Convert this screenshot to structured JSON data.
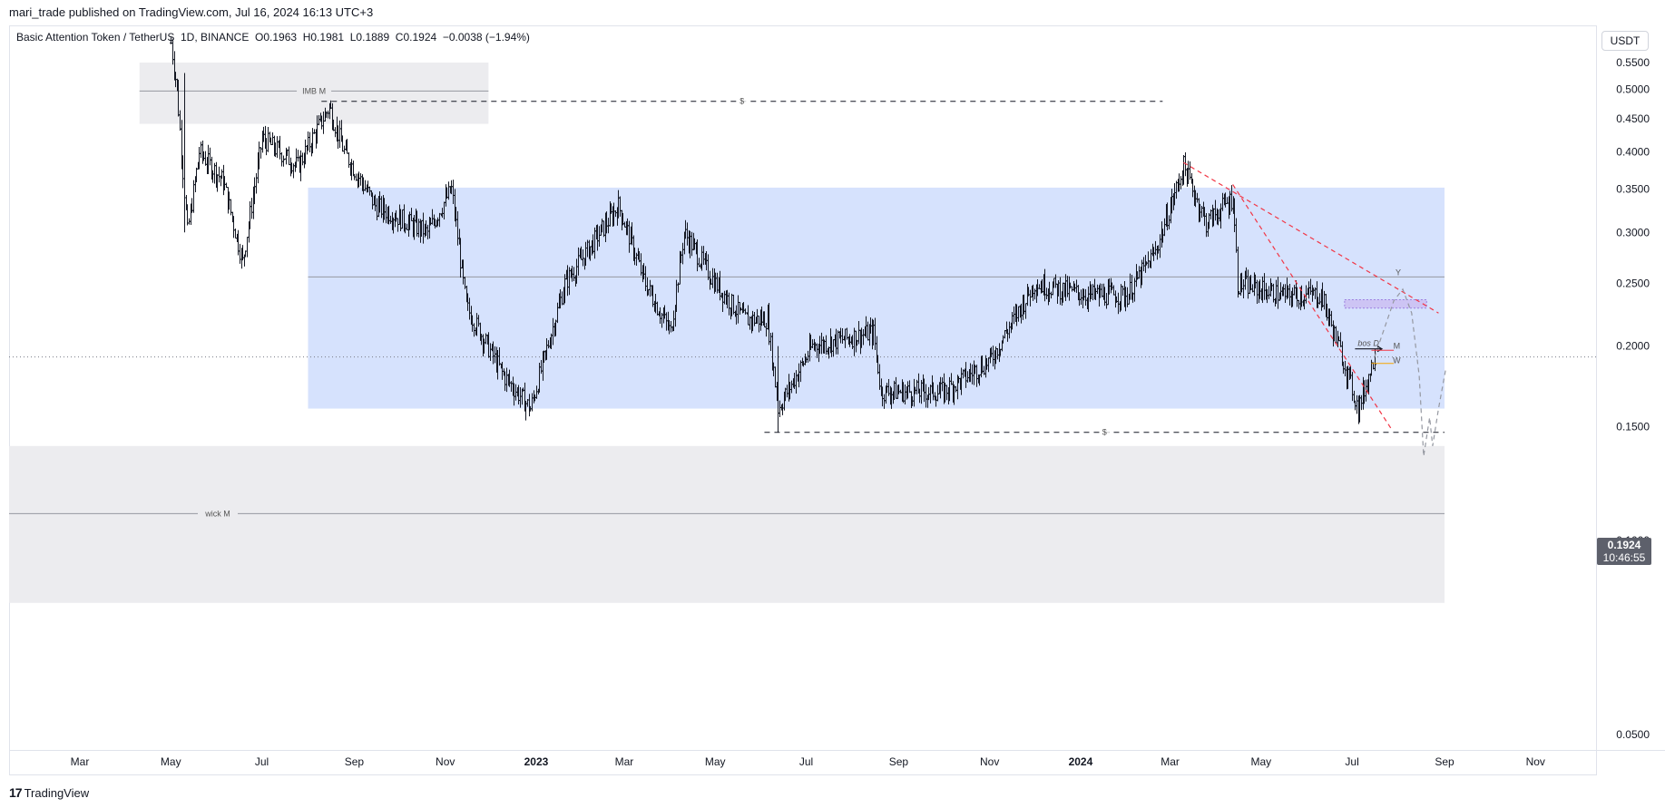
{
  "publish_line": "mari_trade published on TradingView.com, Jul 16, 2024 16:13 UTC+3",
  "legend": "Basic Attention Token / TetherUS  1D, BINANCE  O0.1963  H0.1981  L0.1889  C0.1924  −0.0038 (−1.94%)",
  "currency": "USDT",
  "last_price": "0.1924",
  "countdown": "10:46:55",
  "brand": "TradingView",
  "colors": {
    "candle": "#131722",
    "zone_gray": "#ececef",
    "zone_blue": "#d6e2fd",
    "trendline": "#f23645",
    "purple_zone": "#c9b8ef",
    "price_badge": "#5d606b"
  },
  "chart_data": {
    "type": "candlestick",
    "y_scale": "log",
    "ylim": [
      0.046,
      0.59
    ],
    "y_ticks": [
      "0.5500",
      "0.5000",
      "0.4500",
      "0.4000",
      "0.3500",
      "0.3000",
      "0.2500",
      "0.2000",
      "0.1500",
      "0.1000",
      "0.0500"
    ],
    "x_ticks": [
      {
        "label": "Mar",
        "date": "2022-03-01",
        "bold": false
      },
      {
        "label": "May",
        "date": "2022-05-01",
        "bold": false
      },
      {
        "label": "Jul",
        "date": "2022-07-01",
        "bold": false
      },
      {
        "label": "Sep",
        "date": "2022-09-01",
        "bold": false
      },
      {
        "label": "Nov",
        "date": "2022-11-01",
        "bold": false
      },
      {
        "label": "2023",
        "date": "2023-01-01",
        "bold": true
      },
      {
        "label": "Mar",
        "date": "2023-03-01",
        "bold": false
      },
      {
        "label": "May",
        "date": "2023-05-01",
        "bold": false
      },
      {
        "label": "Jul",
        "date": "2023-07-01",
        "bold": false
      },
      {
        "label": "Sep",
        "date": "2023-09-01",
        "bold": false
      },
      {
        "label": "Nov",
        "date": "2023-11-01",
        "bold": false
      },
      {
        "label": "2024",
        "date": "2024-01-01",
        "bold": true
      },
      {
        "label": "Mar",
        "date": "2024-03-01",
        "bold": false
      },
      {
        "label": "May",
        "date": "2024-05-01",
        "bold": false
      },
      {
        "label": "Jul",
        "date": "2024-07-01",
        "bold": false
      },
      {
        "label": "Sep",
        "date": "2024-09-01",
        "bold": false
      },
      {
        "label": "Nov",
        "date": "2024-11-01",
        "bold": false
      }
    ],
    "price_path_approx": [
      [
        "2022-05-01",
        0.59
      ],
      [
        "2022-05-05",
        0.5
      ],
      [
        "2022-05-12",
        0.3
      ],
      [
        "2022-05-20",
        0.4
      ],
      [
        "2022-06-05",
        0.36
      ],
      [
        "2022-06-18",
        0.27
      ],
      [
        "2022-07-01",
        0.42
      ],
      [
        "2022-07-25",
        0.38
      ],
      [
        "2022-08-15",
        0.47
      ],
      [
        "2022-08-25",
        0.4
      ],
      [
        "2022-09-15",
        0.33
      ],
      [
        "2022-10-20",
        0.3
      ],
      [
        "2022-11-05",
        0.35
      ],
      [
        "2022-11-15",
        0.23
      ],
      [
        "2022-12-10",
        0.18
      ],
      [
        "2022-12-28",
        0.16
      ],
      [
        "2023-01-20",
        0.25
      ],
      [
        "2023-02-25",
        0.33
      ],
      [
        "2023-03-15",
        0.25
      ],
      [
        "2023-04-01",
        0.21
      ],
      [
        "2023-04-10",
        0.3
      ],
      [
        "2023-05-01",
        0.25
      ],
      [
        "2023-05-20",
        0.22
      ],
      [
        "2023-06-05",
        0.22
      ],
      [
        "2023-06-12",
        0.16
      ],
      [
        "2023-07-05",
        0.2
      ],
      [
        "2023-08-15",
        0.21
      ],
      [
        "2023-08-20",
        0.17
      ],
      [
        "2023-10-01",
        0.17
      ],
      [
        "2023-11-01",
        0.19
      ],
      [
        "2023-12-01",
        0.25
      ],
      [
        "2024-01-05",
        0.24
      ],
      [
        "2024-02-01",
        0.24
      ],
      [
        "2024-02-20",
        0.28
      ],
      [
        "2024-03-10",
        0.38
      ],
      [
        "2024-03-25",
        0.31
      ],
      [
        "2024-04-12",
        0.34
      ],
      [
        "2024-04-15",
        0.25
      ],
      [
        "2024-05-15",
        0.24
      ],
      [
        "2024-06-10",
        0.24
      ],
      [
        "2024-06-25",
        0.19
      ],
      [
        "2024-07-05",
        0.16
      ],
      [
        "2024-07-16",
        0.1924
      ]
    ],
    "candles": [
      {
        "x": "2022-05-10",
        "ohlc": [
          0.5,
          0.53,
          0.3,
          0.34
        ]
      },
      {
        "x": "2023-06-12",
        "ohlc": [
          0.19,
          0.2,
          0.147,
          0.16
        ]
      },
      {
        "x": "2024-07-16",
        "o": 0.1963,
        "h": 0.1981,
        "l": 0.1889,
        "c": 0.1924
      }
    ],
    "zones": [
      {
        "label": "IMB M",
        "x0": "2022-04-10",
        "x1": "2022-11-30",
        "y0": 0.442,
        "y1": 0.55,
        "mid": 0.497,
        "color": "gray"
      },
      {
        "label": "",
        "x0": "2022-08-01",
        "x1": "2024-09-01",
        "y0": 0.16,
        "y1": 0.352,
        "mid": 0.256,
        "color": "blue"
      },
      {
        "label": "wick M",
        "x0": "2021-12-20",
        "x1": "2024-09-01",
        "y0": 0.08,
        "y1": 0.14,
        "mid": 0.11,
        "color": "gray"
      },
      {
        "label": "",
        "x0": "2024-06-26",
        "x1": "2024-08-20",
        "y0": 0.229,
        "y1": 0.236,
        "color": "purple"
      }
    ],
    "horizontal_levels": [
      {
        "label": "$",
        "y": 0.479,
        "x0": "2022-08-10",
        "x1": "2024-02-25",
        "style": "dashed"
      },
      {
        "label": "$",
        "y": 0.147,
        "x0": "2023-06-03",
        "x1": "2024-09-01",
        "style": "dashed"
      },
      {
        "label": "",
        "y": 0.1924,
        "style": "dotted",
        "meaning": "last price"
      }
    ],
    "trendlines": [
      {
        "from": [
          "2024-03-10",
          0.385
        ],
        "to": [
          "2024-08-28",
          0.225
        ],
        "style": "dashed",
        "color": "red"
      },
      {
        "from": [
          "2024-04-12",
          0.356
        ],
        "to": [
          "2024-07-28",
          0.148
        ],
        "style": "dashed",
        "color": "red"
      }
    ],
    "annotations": [
      {
        "text": "bos D",
        "x": "2024-07-12",
        "y": 0.202
      },
      {
        "text": "M",
        "x": "2024-07-31",
        "y": 0.2,
        "color": "#f23645"
      },
      {
        "text": "W",
        "x": "2024-07-31",
        "y": 0.19,
        "color": "#f7a600"
      },
      {
        "text": "Y",
        "x": "2024-08-01",
        "y": 0.26,
        "color": "#2962ff"
      }
    ],
    "projection": [
      [
        "2024-07-16",
        0.192
      ],
      [
        "2024-07-29",
        0.235
      ],
      [
        "2024-08-04",
        0.245
      ],
      [
        "2024-08-10",
        0.225
      ],
      [
        "2024-08-15",
        0.18
      ],
      [
        "2024-08-18",
        0.135
      ],
      [
        "2024-08-22",
        0.155
      ],
      [
        "2024-08-24",
        0.14
      ],
      [
        "2024-08-28",
        0.16
      ],
      [
        "2024-09-02",
        0.185
      ]
    ],
    "grid": false,
    "legend_position": "top-left"
  }
}
